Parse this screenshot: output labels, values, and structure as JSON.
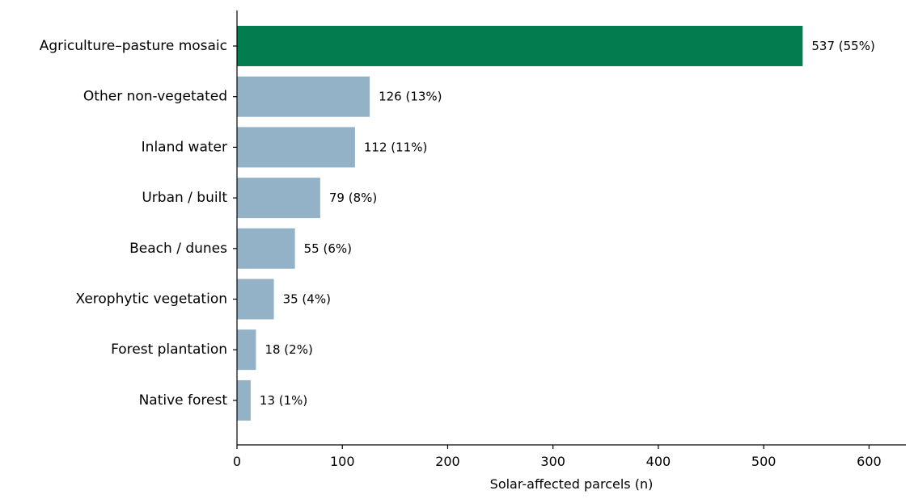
{
  "chart_data": {
    "type": "bar",
    "orientation": "horizontal",
    "categories": [
      "Agriculture–pasture mosaic",
      "Other non-vegetated",
      "Inland water",
      "Urban / built",
      "Beach / dunes",
      "Xerophytic vegetation",
      "Forest plantation",
      "Native forest"
    ],
    "values": [
      537,
      126,
      112,
      79,
      55,
      35,
      18,
      13
    ],
    "value_labels": [
      "537 (55%)",
      "126 (13%)",
      "112 (11%)",
      "79 (8%)",
      "55 (6%)",
      "35 (4%)",
      "18 (2%)",
      "13 (1%)"
    ],
    "bar_colors": [
      "#037d50",
      "#94b2c7",
      "#94b2c7",
      "#94b2c7",
      "#94b2c7",
      "#94b2c7",
      "#94b2c7",
      "#94b2c7"
    ],
    "xlabel": "Solar-affected parcels (n)",
    "ylabel": "",
    "title": "",
    "xlim": [
      0,
      635
    ],
    "xticks": [
      0,
      100,
      200,
      300,
      400,
      500,
      600
    ],
    "grid": false,
    "legend": "none"
  }
}
